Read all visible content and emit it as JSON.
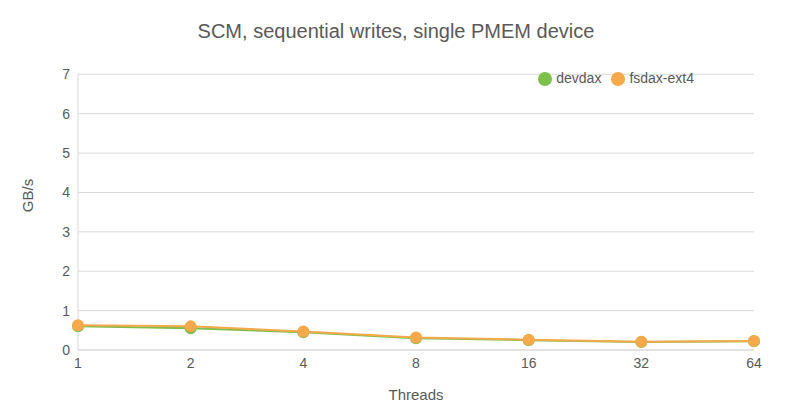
{
  "chart_data": {
    "type": "line",
    "title": "SCM, sequential writes, single PMEM device",
    "x_label": "Threads",
    "y_label": "GB/s",
    "categories": [
      "1",
      "2",
      "4",
      "8",
      "16",
      "32",
      "64"
    ],
    "series": [
      {
        "name": "devdax",
        "color": "#7cbf4b",
        "values": [
          0.6,
          0.55,
          0.45,
          0.3,
          0.25,
          0.2,
          0.22
        ]
      },
      {
        "name": "fsdax-ext4",
        "color": "#f5a94b",
        "values": [
          0.63,
          0.6,
          0.47,
          0.32,
          0.26,
          0.21,
          0.23
        ]
      }
    ],
    "ylim": [
      0,
      7
    ],
    "yticks": [
      0,
      1,
      2,
      3,
      4,
      5,
      6,
      7
    ],
    "grid": true,
    "legend": "upper right",
    "marker": "circle"
  }
}
